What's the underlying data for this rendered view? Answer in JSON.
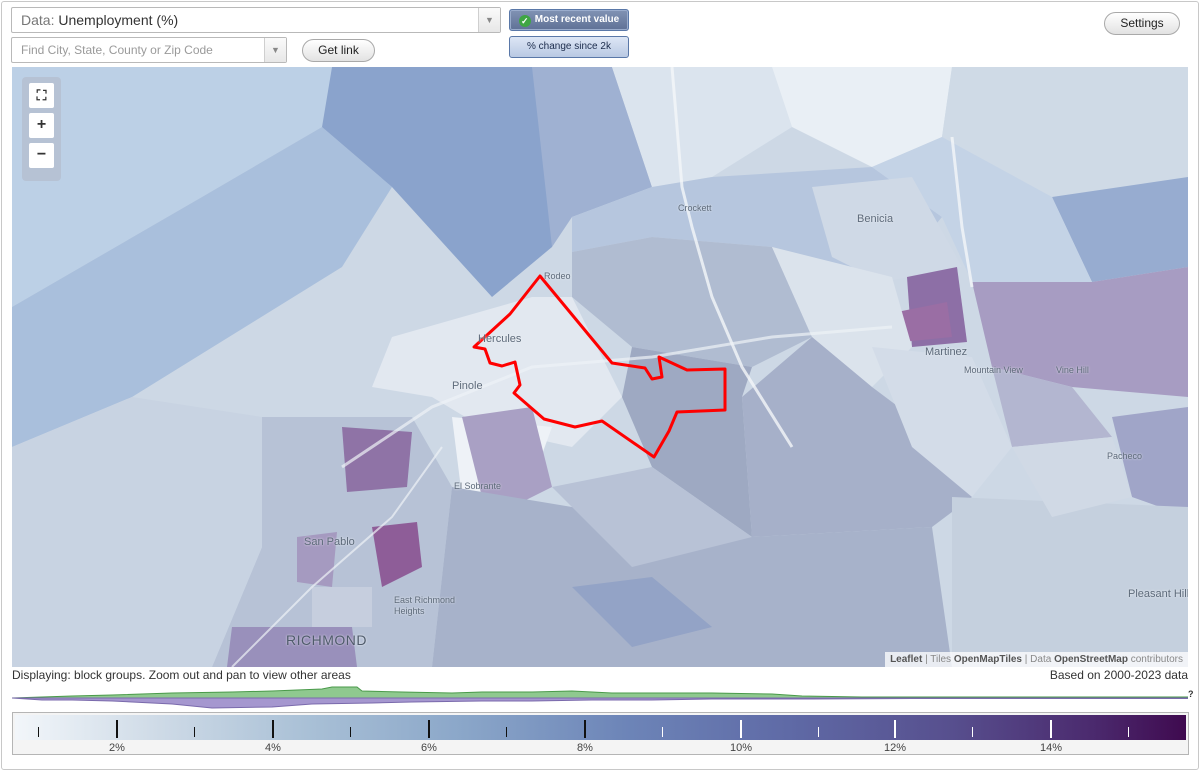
{
  "controls": {
    "data_prefix": "Data:",
    "data_value": "Unemployment (%)",
    "search_placeholder": "Find City, State, County or Zip Code",
    "get_link_label": "Get link",
    "toggle_active_label": "Most recent value",
    "toggle_inactive_label": "% change since 2k",
    "settings_label": "Settings"
  },
  "map": {
    "place_labels": {
      "crockett": "Crockett",
      "benicia": "Benicia",
      "rodeo": "Rodeo",
      "hercules": "Hercules",
      "pinole": "Pinole",
      "martinez": "Martinez",
      "mountain_view": "Mountain View",
      "vine_hill": "Vine Hill",
      "pacheco": "Pacheco",
      "el_sobrante": "El Sobrante",
      "san_pablo": "San Pablo",
      "east_richmond_heights": "East Richmond Heights",
      "richmond": "RICHMOND",
      "pleasant_hill": "Pleasant Hill"
    },
    "zoom_controls": {
      "fit": "⛶",
      "zoom_in": "+",
      "zoom_out": "−"
    },
    "attribution": {
      "leaflet": "Leaflet",
      "tiles_prefix": "Tiles",
      "tiles": "OpenMapTiles",
      "data_prefix": "Data",
      "data": "OpenStreetMap",
      "suffix": "contributors"
    },
    "colors": {
      "highlight_outline": "#ff0000",
      "low": "#e8eef5",
      "mid": "#a9bad6",
      "high": "#8a6a9a"
    }
  },
  "footer": {
    "status": "Displaying: block groups. Zoom out and pan to view other areas",
    "range_note": "Based on 2000-2023 data",
    "histogram_unknown": "?"
  },
  "legend": {
    "ticks": [
      "2%",
      "4%",
      "6%",
      "8%",
      "10%",
      "12%",
      "14%"
    ]
  }
}
